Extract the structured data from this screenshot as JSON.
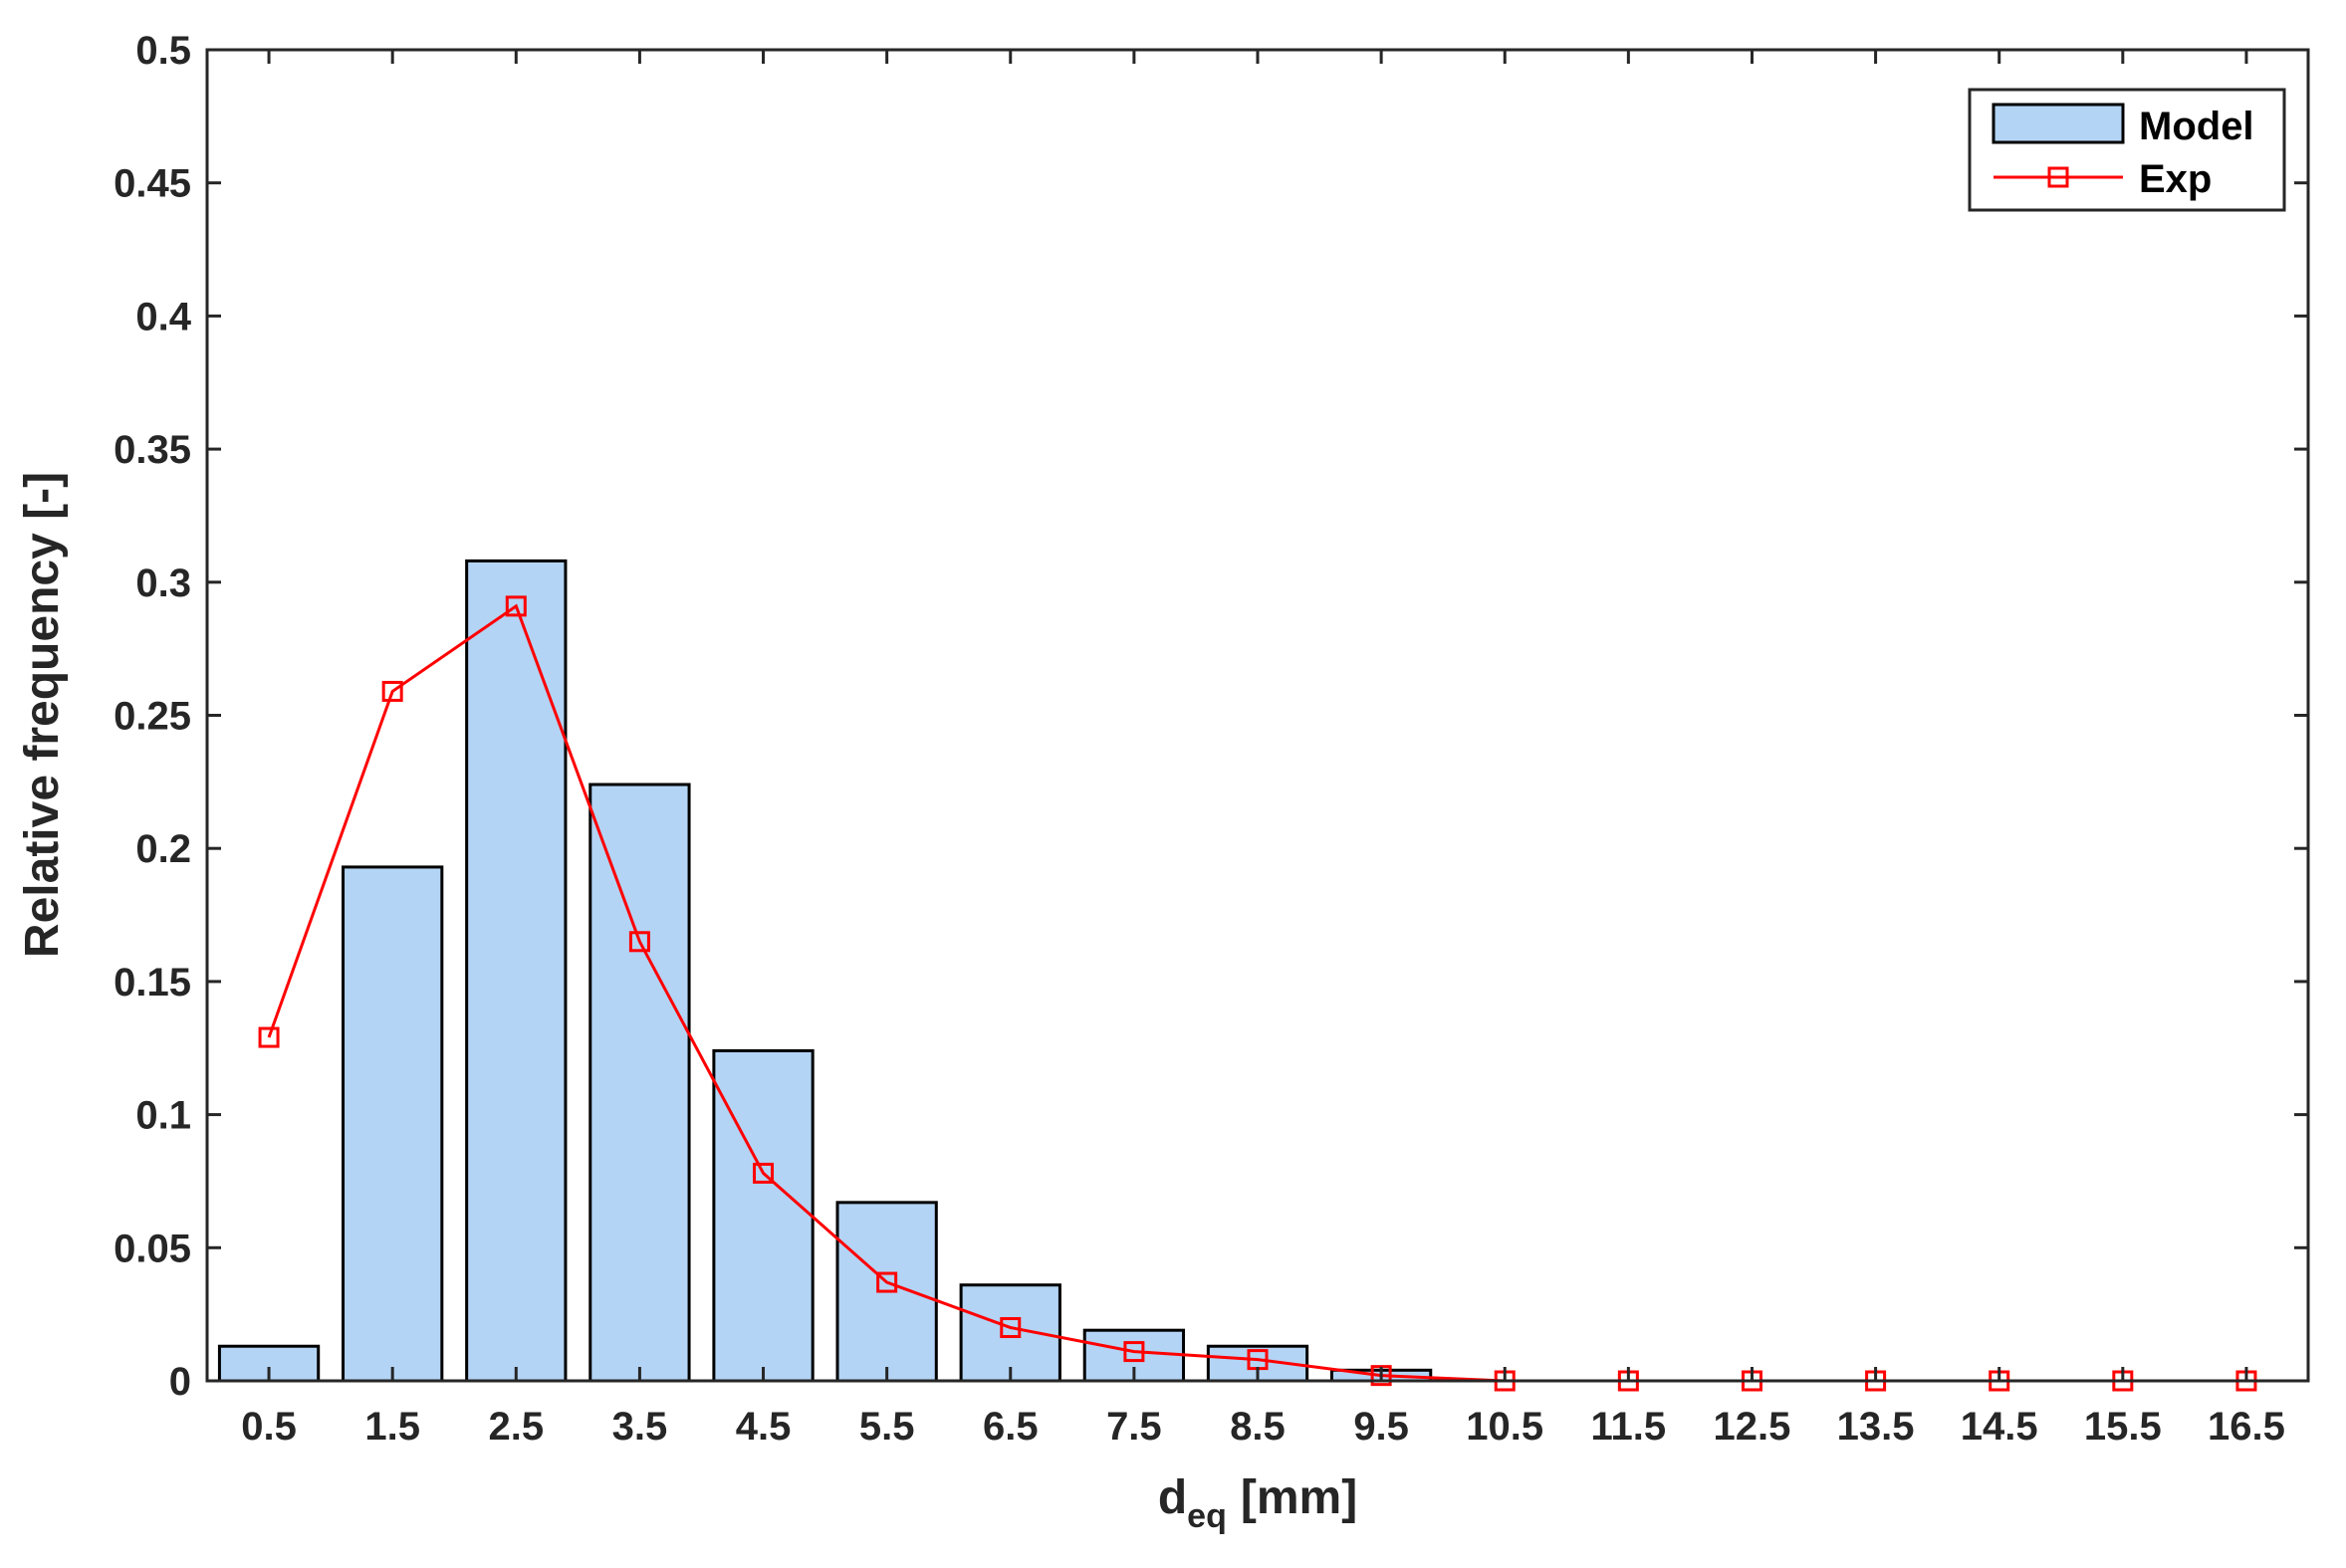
{
  "chart_data": {
    "type": "bar",
    "categories": [
      "0.5",
      "1.5",
      "2.5",
      "3.5",
      "4.5",
      "5.5",
      "6.5",
      "7.5",
      "8.5",
      "9.5",
      "10.5",
      "11.5",
      "12.5",
      "13.5",
      "14.5",
      "15.5",
      "16.5"
    ],
    "series": [
      {
        "name": "Model",
        "type": "bar",
        "values": [
          0.013,
          0.193,
          0.308,
          0.224,
          0.124,
          0.067,
          0.036,
          0.019,
          0.013,
          0.004,
          0,
          0,
          0,
          0,
          0,
          0,
          0
        ],
        "color": "#b3d4f5"
      },
      {
        "name": "Exp",
        "type": "line",
        "marker": "square",
        "values": [
          0.129,
          0.259,
          0.291,
          0.165,
          0.078,
          0.037,
          0.02,
          0.011,
          0.008,
          0.002,
          0,
          0,
          0,
          0,
          0,
          0,
          0
        ],
        "color": "#ff0000"
      }
    ],
    "xlabel": "d",
    "xlabel_subscript": "eq",
    "xlabel_unit": "[mm]",
    "ylabel": "Relative frequency [-]",
    "ylim": [
      0,
      0.5
    ],
    "yticks": [
      "0",
      "0.05",
      "0.1",
      "0.15",
      "0.2",
      "0.25",
      "0.3",
      "0.35",
      "0.4",
      "0.45",
      "0.5"
    ],
    "grid": false,
    "legend_position": "top-right"
  }
}
